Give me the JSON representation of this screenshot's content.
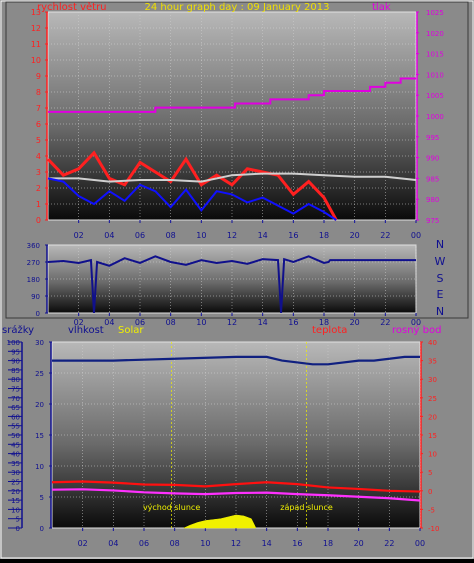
{
  "chart_data": [
    {
      "type": "line",
      "title": "24 hour graph day : 09 January 2013",
      "left_label": "rychlost větru",
      "right_label": "tlak",
      "x_ticks": [
        "02",
        "04",
        "06",
        "08",
        "10",
        "12",
        "14",
        "16",
        "18",
        "20",
        "22",
        "00"
      ],
      "y_left": {
        "min": 0,
        "max": 13,
        "ticks": [
          0,
          1,
          2,
          3,
          4,
          5,
          6,
          7,
          8,
          9,
          10,
          11,
          12,
          13
        ]
      },
      "y_right": {
        "min": 975,
        "max": 1025,
        "ticks": [
          975,
          980,
          985,
          990,
          995,
          1000,
          1005,
          1010,
          1015,
          1020,
          1025
        ]
      },
      "series": [
        {
          "color": "#e000e0",
          "axis": "right",
          "x": [
            0,
            6,
            7,
            12,
            12.2,
            14,
            14.5,
            16,
            17,
            18,
            20,
            21,
            22,
            23,
            24
          ],
          "y": [
            1001,
            1001,
            1002,
            1002,
            1003,
            1003,
            1004,
            1004,
            1005,
            1006,
            1006,
            1007,
            1008,
            1009,
            1009
          ]
        },
        {
          "color": "#ff2020",
          "axis": "left",
          "x": [
            0,
            1,
            2,
            3,
            4,
            5,
            6,
            7,
            8,
            9,
            10,
            11,
            12,
            13,
            14,
            15,
            16,
            17,
            18,
            18.8
          ],
          "y": [
            3.8,
            2.8,
            3.2,
            4.2,
            2.6,
            2.2,
            3.6,
            3.0,
            2.4,
            3.8,
            2.2,
            2.8,
            2.2,
            3.2,
            3.0,
            2.8,
            1.6,
            2.4,
            1.4,
            0
          ]
        },
        {
          "color": "#cfcfcf",
          "axis": "left",
          "x": [
            0,
            2,
            4,
            6,
            8,
            10,
            12,
            14,
            16,
            18,
            20,
            22,
            24
          ],
          "y": [
            2.6,
            2.6,
            2.4,
            2.5,
            2.5,
            2.4,
            2.8,
            2.9,
            2.9,
            2.8,
            2.7,
            2.7,
            2.5
          ]
        },
        {
          "color": "#1010ff",
          "axis": "left",
          "x": [
            0,
            1,
            2,
            3,
            4,
            5,
            6,
            7,
            8,
            9,
            10,
            11,
            12,
            13,
            14,
            15,
            16,
            17,
            18,
            18.8
          ],
          "y": [
            2.6,
            2.4,
            1.5,
            1.0,
            1.8,
            1.2,
            2.2,
            1.8,
            0.8,
            1.9,
            0.6,
            1.8,
            1.6,
            1.1,
            1.4,
            0.9,
            0.4,
            1.0,
            0.5,
            0
          ]
        }
      ]
    },
    {
      "type": "line",
      "x_ticks": [
        "02",
        "04",
        "06",
        "08",
        "10",
        "12",
        "14",
        "16",
        "18",
        "20",
        "22",
        "00"
      ],
      "y": {
        "min": 0,
        "max": 360,
        "ticks": [
          0,
          90,
          180,
          270,
          360
        ]
      },
      "side_labels": [
        "N",
        "W",
        "S",
        "E",
        "N"
      ],
      "series": [
        {
          "color": "#10108c",
          "x": [
            0,
            1,
            2,
            2.8,
            3,
            3.2,
            4,
            5,
            6,
            7,
            8,
            9,
            10,
            11,
            12,
            13,
            14,
            15,
            15.2,
            15.4,
            16,
            17,
            18,
            18.3,
            18.4,
            24
          ],
          "y": [
            270,
            275,
            265,
            280,
            0,
            270,
            250,
            290,
            265,
            300,
            270,
            255,
            280,
            265,
            275,
            260,
            285,
            280,
            0,
            285,
            270,
            300,
            265,
            270,
            280,
            280
          ]
        }
      ]
    },
    {
      "type": "line",
      "labels": {
        "rain": "srážky",
        "humidity": "vlhkost",
        "solar": "Solar",
        "temperature": "teplota",
        "dewpoint": "rosný bod"
      },
      "annotations": {
        "sunrise": "východ slunce",
        "sunset": "západ slunce"
      },
      "x_ticks": [
        "02",
        "04",
        "06",
        "08",
        "10",
        "12",
        "14",
        "16",
        "18",
        "20",
        "22",
        "00"
      ],
      "y_rain": {
        "min": 0,
        "max": 100,
        "ticks": [
          0,
          5,
          10,
          15,
          20,
          25,
          30,
          35,
          40,
          45,
          50,
          55,
          60,
          65,
          70,
          75,
          80,
          85,
          90,
          95,
          100
        ]
      },
      "y_humidity": {
        "min": 0,
        "max": 30,
        "ticks": [
          0,
          5,
          10,
          15,
          20,
          25,
          30
        ]
      },
      "y_right": {
        "min": -10,
        "max": 40,
        "ticks": [
          -10,
          -5,
          0,
          5,
          10,
          15,
          20,
          25,
          30,
          35,
          40
        ]
      },
      "sun_times": {
        "sunrise": 7.8,
        "sunset": 16.6
      },
      "series": [
        {
          "color": "#102080",
          "axis": "rain",
          "x": [
            0,
            4,
            8,
            12,
            14,
            15,
            16,
            17,
            18,
            20,
            21,
            22,
            23,
            24
          ],
          "y": [
            90,
            90,
            91,
            92,
            92,
            90,
            89,
            88,
            88,
            90,
            90,
            91,
            92,
            92
          ]
        },
        {
          "color": "#ff1010",
          "axis": "right",
          "x": [
            0,
            2,
            4,
            6,
            8,
            10,
            12,
            14,
            16,
            18,
            20,
            22,
            24
          ],
          "y": [
            2.3,
            2.5,
            2.2,
            1.7,
            1.6,
            1.2,
            1.8,
            2.3,
            1.8,
            0.9,
            0.5,
            0.0,
            -0.2
          ]
        },
        {
          "color": "#ff30ff",
          "axis": "right",
          "x": [
            0,
            2,
            4,
            6,
            8,
            10,
            12,
            14,
            16,
            18,
            20,
            22,
            24
          ],
          "y": [
            0.3,
            0.4,
            0.1,
            -0.4,
            -0.7,
            -0.9,
            -0.6,
            -0.5,
            -0.9,
            -1.2,
            -1.6,
            -2.0,
            -2.6
          ]
        },
        {
          "color": "#f0f000",
          "axis": "solar",
          "fill": true,
          "x": [
            8.6,
            9,
            9.5,
            10,
            10.5,
            11,
            11.5,
            12,
            12.5,
            13,
            13.3
          ],
          "y": [
            0,
            1.5,
            3,
            4,
            4.5,
            5,
            6,
            7,
            6.5,
            5,
            0
          ]
        }
      ]
    }
  ]
}
